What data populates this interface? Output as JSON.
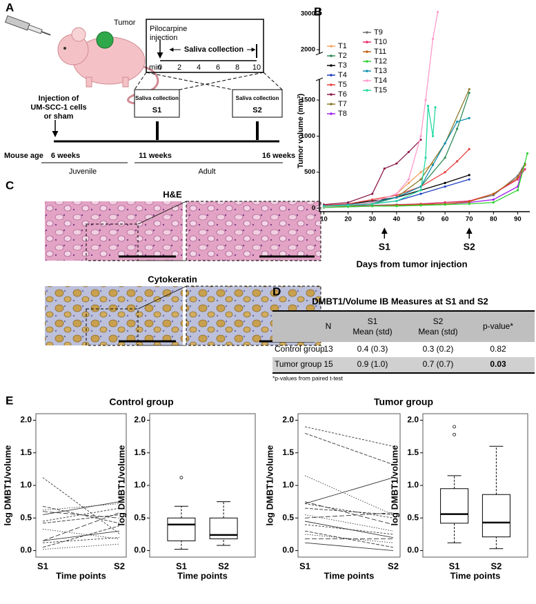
{
  "panel_letters": [
    "A",
    "B",
    "C",
    "D",
    "E"
  ],
  "panel_a": {
    "tumor": "Tumor",
    "inset_title": [
      "Pilocarpine",
      "injection"
    ],
    "inset_span": "Saliva collection",
    "inset_unit": "min",
    "inset_ticks": [
      0,
      2,
      4,
      6,
      8,
      10
    ],
    "boxes": [
      {
        "title": "Saliva collection",
        "label": "S1"
      },
      {
        "title": "Saliva collection",
        "label": "S2"
      }
    ],
    "injection": [
      "Injection of",
      "UM-SCC-1 cells",
      "or sham"
    ],
    "age_label": "Mouse age",
    "ages": [
      "6 weeks",
      "11 weeks",
      "16 weeks"
    ],
    "stages": [
      "Juvenile",
      "Adult"
    ]
  },
  "panel_c": {
    "stains": [
      "H&E",
      "Cytokeratin"
    ]
  },
  "panel_d": {
    "title": "DMBT1/Volume IB Measures at S1 and S2",
    "header": [
      [
        "N"
      ],
      [
        "S1",
        "Mean (std)"
      ],
      [
        "S2",
        "Mean (std)"
      ],
      [
        "p-value*"
      ]
    ],
    "rows": [
      [
        "Control group",
        13,
        "0.4 (0.3)",
        "0.3 (0.2)",
        0.82
      ],
      [
        "Tumor group",
        15,
        "0.9 (1.0)",
        "0.7 (0.7)",
        0.03
      ]
    ],
    "significant": [
      false,
      true
    ],
    "footnote": "*p-values from paired t-test"
  },
  "panel_e": {
    "titles": [
      "Control group",
      "Tumor group"
    ]
  },
  "chart_data": [
    {
      "type": "line",
      "xlabel": "Days from tumor injection",
      "ylabel": "Tumor volume (mm³)",
      "xlim": [
        9,
        95
      ],
      "xticks": [
        10,
        20,
        30,
        40,
        50,
        60,
        70,
        80,
        90
      ],
      "ylim": [
        0,
        3100
      ],
      "ybreak": [
        1750,
        1950
      ],
      "yticks": [
        0,
        500,
        1000,
        1500,
        2000,
        3000
      ],
      "legend": "upper left",
      "annotations": [
        {
          "text": "S1",
          "x": 35
        },
        {
          "text": "S2",
          "x": 70
        }
      ],
      "series": [
        {
          "name": "T1",
          "color": "#f4a460",
          "x": [
            10,
            20,
            30,
            40,
            45,
            50,
            55
          ],
          "values": [
            30,
            50,
            80,
            200,
            350,
            500,
            620
          ]
        },
        {
          "name": "T2",
          "color": "#2e8b57",
          "x": [
            10,
            20,
            30,
            40,
            50,
            60,
            65,
            70
          ],
          "values": [
            20,
            40,
            60,
            150,
            300,
            700,
            1100,
            1600
          ]
        },
        {
          "name": "T3",
          "color": "#000000",
          "x": [
            10,
            20,
            30,
            40,
            50,
            60,
            70
          ],
          "values": [
            30,
            60,
            100,
            150,
            250,
            350,
            460
          ]
        },
        {
          "name": "T4",
          "color": "#2040c0",
          "x": [
            10,
            20,
            30,
            40,
            50,
            60,
            70
          ],
          "values": [
            10,
            30,
            60,
            100,
            200,
            300,
            400
          ]
        },
        {
          "name": "T5",
          "color": "#e84040",
          "x": [
            10,
            20,
            30,
            40,
            50,
            60,
            65,
            70
          ],
          "values": [
            40,
            60,
            120,
            180,
            300,
            500,
            650,
            820
          ]
        },
        {
          "name": "T6",
          "color": "#8b1a4a",
          "x": [
            10,
            20,
            30,
            35,
            40,
            45,
            50
          ],
          "values": [
            50,
            80,
            200,
            550,
            620,
            780,
            950
          ]
        },
        {
          "name": "T7",
          "color": "#8b7a2a",
          "x": [
            10,
            20,
            30,
            40,
            50,
            60,
            70
          ],
          "values": [
            20,
            40,
            80,
            150,
            400,
            900,
            1650
          ]
        },
        {
          "name": "T8",
          "color": "#a020f0",
          "x": [
            10,
            20,
            30,
            40,
            50,
            60,
            70,
            80,
            90,
            92
          ],
          "values": [
            10,
            20,
            30,
            40,
            50,
            60,
            80,
            120,
            300,
            550
          ]
        },
        {
          "name": "T9",
          "color": "#707070",
          "x": [
            10,
            20,
            30,
            40,
            50,
            60,
            70,
            80,
            90,
            93
          ],
          "values": [
            20,
            30,
            40,
            50,
            60,
            80,
            100,
            180,
            450,
            620
          ]
        },
        {
          "name": "T10",
          "color": "#e8286e",
          "x": [
            10,
            20,
            30,
            40,
            50,
            60,
            70,
            80,
            90,
            93
          ],
          "values": [
            15,
            25,
            35,
            45,
            60,
            80,
            100,
            200,
            400,
            540
          ]
        },
        {
          "name": "T11",
          "color": "#c06010",
          "x": [
            10,
            20,
            30,
            40,
            50,
            60,
            70,
            80,
            90,
            93
          ],
          "values": [
            20,
            30,
            30,
            40,
            50,
            60,
            90,
            200,
            420,
            600
          ]
        },
        {
          "name": "T12",
          "color": "#30d030",
          "x": [
            10,
            20,
            30,
            40,
            50,
            60,
            70,
            80,
            90,
            94
          ],
          "values": [
            10,
            20,
            30,
            30,
            40,
            50,
            60,
            80,
            250,
            760
          ]
        },
        {
          "name": "T13",
          "color": "#1090b0",
          "x": [
            10,
            20,
            30,
            40,
            50,
            55,
            60,
            65,
            70
          ],
          "values": [
            30,
            50,
            80,
            150,
            300,
            600,
            900,
            1200,
            1250
          ]
        },
        {
          "name": "T14",
          "color": "#ff99cc",
          "x": [
            10,
            20,
            30,
            40,
            45,
            50,
            52,
            55,
            57
          ],
          "values": [
            20,
            40,
            80,
            200,
            400,
            1000,
            1500,
            2300,
            3050
          ]
        },
        {
          "name": "T15",
          "color": "#20d8a0",
          "x": [
            10,
            20,
            30,
            40,
            50,
            52,
            53,
            55,
            56
          ],
          "values": [
            30,
            40,
            60,
            100,
            250,
            700,
            1420,
            1000,
            1400
          ]
        }
      ]
    },
    {
      "type": "paired",
      "ylabel": "log DMBT1/volume",
      "xlabel": "Time points",
      "categories": [
        "S1",
        "S2"
      ],
      "ylim": [
        -0.1,
        2.1
      ],
      "yticks": [
        {
          "value": 0,
          "label": "0.0"
        },
        0.5,
        {
          "value": 1,
          "label": "1.0"
        },
        1.5,
        {
          "value": 2,
          "label": "2.0"
        }
      ],
      "values": [
        [
          1.12,
          0.26
        ],
        [
          0.68,
          0.42
        ],
        [
          0.62,
          0.72
        ],
        [
          0.6,
          0.5
        ],
        [
          0.55,
          0.75
        ],
        [
          0.45,
          0.65
        ],
        [
          0.42,
          0.55
        ],
        [
          0.33,
          0.18
        ],
        [
          0.15,
          0.58
        ],
        [
          0.15,
          0.3
        ],
        [
          0.12,
          0.2
        ],
        [
          0.05,
          0.38
        ],
        [
          0.02,
          0.1
        ]
      ]
    },
    {
      "type": "box",
      "ylabel": "log DMBT1/volume",
      "xlabel": "Time points",
      "categories": [
        "S1",
        "S2"
      ],
      "ylim": [
        -0.1,
        2.1
      ],
      "yticks": [
        {
          "value": 0,
          "label": "0.0"
        },
        0.5,
        {
          "value": 1,
          "label": "1.0"
        },
        1.5,
        {
          "value": 2,
          "label": "2.0"
        }
      ],
      "boxes": [
        {
          "whislo": 0.02,
          "q1": 0.15,
          "med": 0.4,
          "q3": 0.5,
          "whishi": 0.68,
          "fliers": [
            1.12
          ]
        },
        {
          "whislo": 0.08,
          "q1": 0.18,
          "med": 0.24,
          "q3": 0.5,
          "whishi": 0.75,
          "fliers": []
        }
      ]
    },
    {
      "type": "paired",
      "ylabel": "log DMBT1/volume",
      "xlabel": "Time points",
      "categories": [
        "S1",
        "S2"
      ],
      "ylim": [
        -0.1,
        2.1
      ],
      "yticks": [
        {
          "value": 0,
          "label": "0.0"
        },
        0.5,
        {
          "value": 1,
          "label": "1.0"
        },
        1.5,
        {
          "value": 2,
          "label": "2.0"
        }
      ],
      "values": [
        [
          1.9,
          1.6
        ],
        [
          1.8,
          1.32
        ],
        [
          1.15,
          0.55
        ],
        [
          0.75,
          0.4
        ],
        [
          0.72,
          1.12
        ],
        [
          0.72,
          0.5
        ],
        [
          0.65,
          0.55
        ],
        [
          0.55,
          0.3
        ],
        [
          0.5,
          0.58
        ],
        [
          0.45,
          0.2
        ],
        [
          0.4,
          0.25
        ],
        [
          0.3,
          0.05
        ],
        [
          0.25,
          0.12
        ],
        [
          0.18,
          0.18
        ],
        [
          0.12,
          0.0
        ]
      ]
    },
    {
      "type": "box",
      "ylabel": "log DMBT1/volume",
      "xlabel": "Time points",
      "categories": [
        "S1",
        "S2"
      ],
      "ylim": [
        -0.1,
        2.1
      ],
      "yticks": [
        {
          "value": 0,
          "label": "0.0"
        },
        0.5,
        {
          "value": 1,
          "label": "1.0"
        },
        1.5,
        {
          "value": 2,
          "label": "2.0"
        }
      ],
      "boxes": [
        {
          "whislo": 0.12,
          "q1": 0.42,
          "med": 0.56,
          "q3": 0.95,
          "whishi": 1.15,
          "fliers": [
            1.9,
            1.78
          ]
        },
        {
          "whislo": 0.03,
          "q1": 0.21,
          "med": 0.43,
          "q3": 0.86,
          "whishi": 1.6,
          "fliers": []
        }
      ]
    }
  ]
}
